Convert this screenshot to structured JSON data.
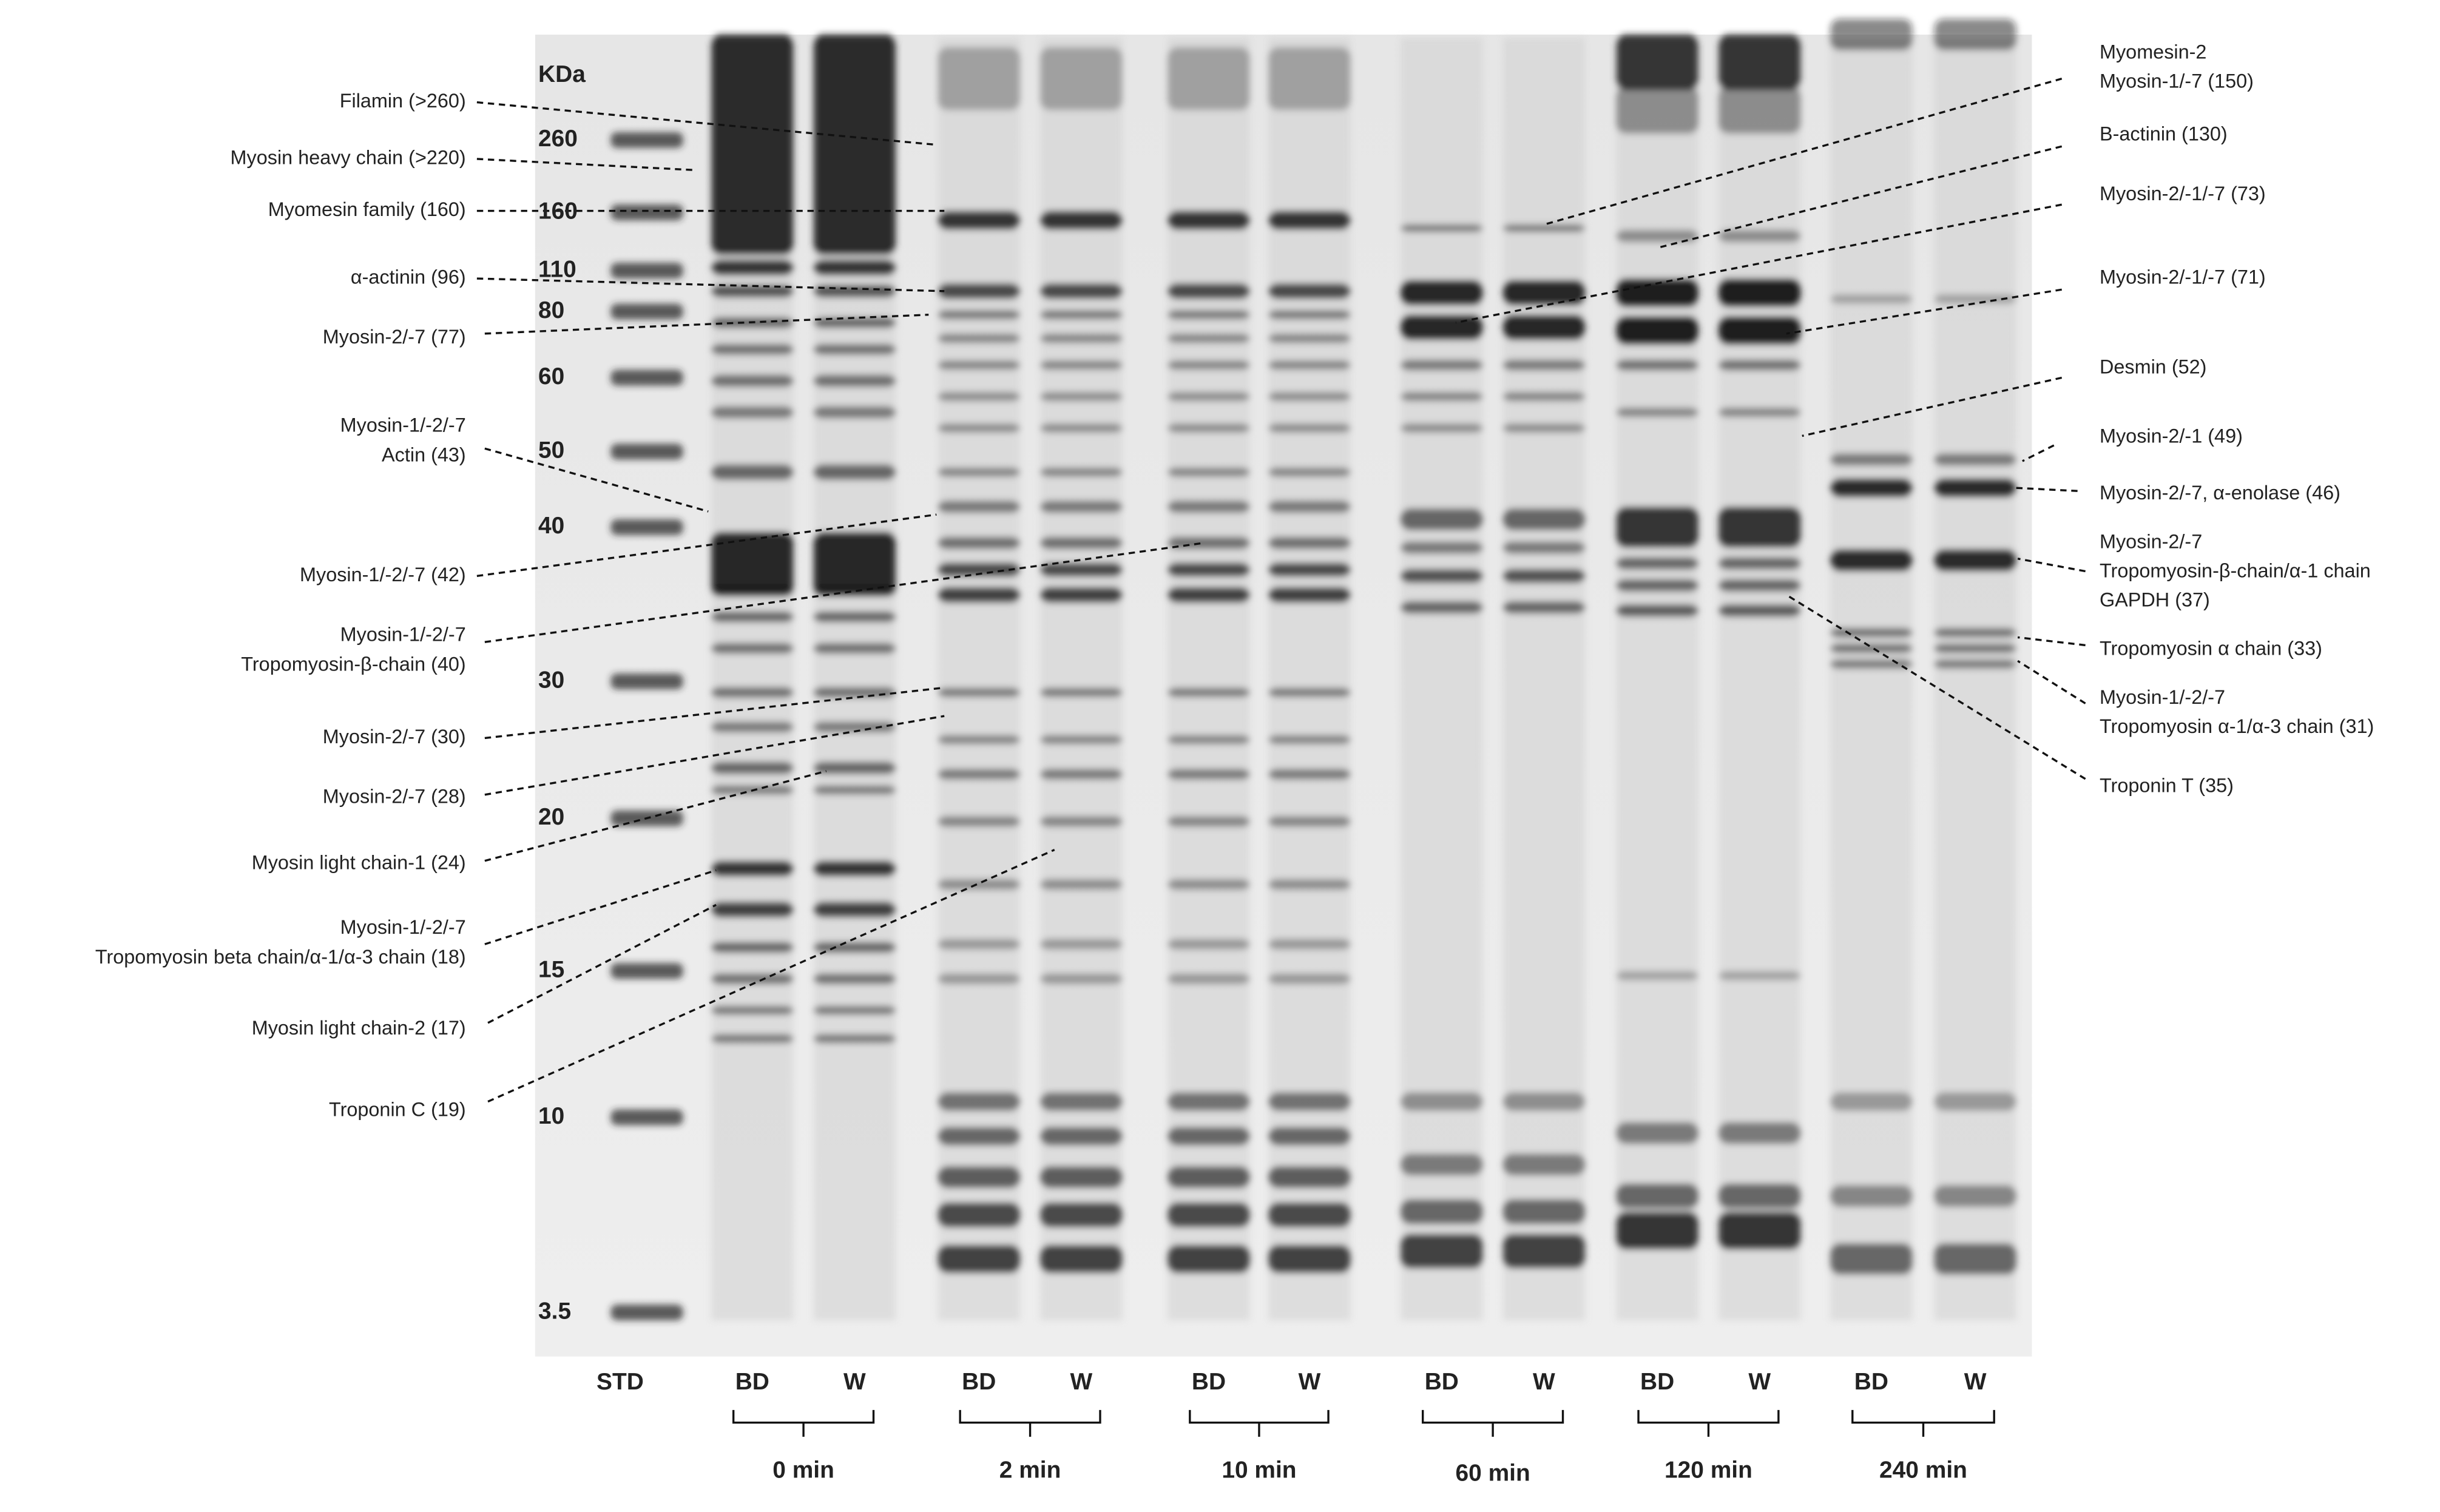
{
  "marker": {
    "unit": "KDa",
    "labels": [
      "260",
      "160",
      "110",
      "80",
      "60",
      "50",
      "40",
      "30",
      "20",
      "15",
      "10",
      "3.5"
    ]
  },
  "lanes": [
    "STD",
    "BD",
    "W",
    "BD",
    "W",
    "BD",
    "W",
    "BD",
    "W",
    "BD",
    "W",
    "BD",
    "W"
  ],
  "groups": [
    "0 min",
    "2 min",
    "10 min",
    "60 min",
    "120 min",
    "240 min"
  ],
  "left_annotations": [
    {
      "lines": [
        "Filamin (>260)"
      ]
    },
    {
      "lines": [
        "Myosin heavy chain (>220)"
      ]
    },
    {
      "lines": [
        "Myomesin family (160)"
      ]
    },
    {
      "lines": [
        "α-actinin (96)"
      ]
    },
    {
      "lines": [
        "Myosin-2/-7 (77)"
      ]
    },
    {
      "lines": [
        "Myosin-1/-2/-7",
        "Actin (43)"
      ]
    },
    {
      "lines": [
        "Myosin-1/-2/-7 (42)"
      ]
    },
    {
      "lines": [
        "Myosin-1/-2/-7",
        "Tropomyosin-β-chain  (40)"
      ]
    },
    {
      "lines": [
        "Myosin-2/-7 (30)"
      ]
    },
    {
      "lines": [
        "Myosin-2/-7 (28)"
      ]
    },
    {
      "lines": [
        "Myosin light chain-1 (24)"
      ]
    },
    {
      "lines": [
        "Myosin-1/-2/-7",
        "Tropomyosin beta chain/α-1/α-3 chain (18)"
      ]
    },
    {
      "lines": [
        "Myosin light chain-2 (17)"
      ]
    },
    {
      "lines": [
        "Troponin C (19)"
      ]
    }
  ],
  "right_annotations": [
    {
      "lines": [
        "Myomesin-2",
        "Myosin-1/-7 (150)"
      ]
    },
    {
      "lines": [
        "B-actinin (130)"
      ]
    },
    {
      "lines": [
        "Myosin-2/-1/-7 (73)"
      ]
    },
    {
      "lines": [
        "Myosin-2/-1/-7 (71)"
      ]
    },
    {
      "lines": [
        "Desmin (52)"
      ]
    },
    {
      "lines": [
        "Myosin-2/-1 (49)"
      ]
    },
    {
      "lines": [
        "Myosin-2/-7, α-enolase (46)"
      ]
    },
    {
      "lines": [
        "Myosin-2/-7",
        "Tropomyosin-β-chain/α-1 chain",
        "GAPDH (37)"
      ]
    },
    {
      "lines": [
        "Tropomyosin α chain (33)"
      ]
    },
    {
      "lines": [
        "Myosin-1/-2/-7",
        "Tropomyosin α-1/α-3 chain (31)"
      ]
    },
    {
      "lines": [
        "Troponin T (35)"
      ]
    }
  ]
}
